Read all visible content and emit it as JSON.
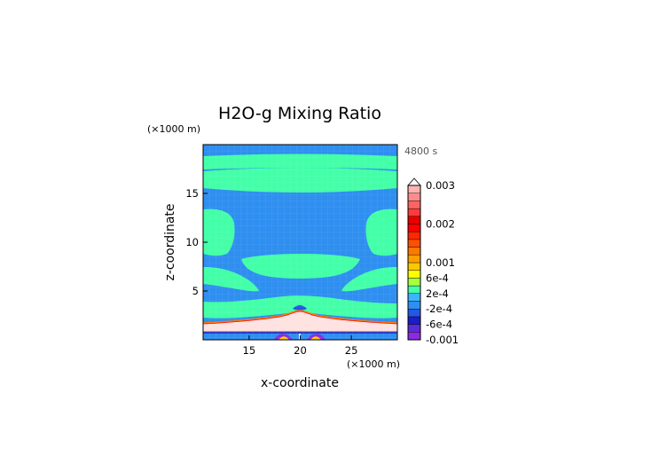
{
  "chart_data": {
    "type": "heatmap",
    "title": "H2O-g Mixing Ratio",
    "time_label": "4800 s",
    "xlabel": "x-coordinate",
    "ylabel": "z-coordinate",
    "x_units": "(×1000 m)",
    "y_units": "(×1000 m)",
    "xlim": [
      10.5,
      29.5
    ],
    "ylim": [
      0,
      20
    ],
    "x_ticks": [
      15,
      20,
      25
    ],
    "y_ticks": [
      5,
      10,
      15
    ],
    "colorbar": {
      "labels": [
        "0.003",
        "0.002",
        "0.001",
        "6e-4",
        "2e-4",
        "-2e-4",
        "-6e-4",
        "-0.001"
      ],
      "label_levels": [
        0.003,
        0.002,
        0.001,
        0.0006,
        0.0002,
        -0.0002,
        -0.0006,
        -0.001
      ],
      "levels": [
        -0.001,
        -0.0008,
        -0.0006,
        -0.0004,
        -0.0002,
        0,
        0.0002,
        0.0004,
        0.0006,
        0.0008,
        0.001,
        0.0012,
        0.0014,
        0.0016,
        0.0018,
        0.002,
        0.0022,
        0.0024,
        0.0026,
        0.0028,
        0.003
      ],
      "colors": [
        "#8a2be2",
        "#5a2bd6",
        "#1c1cc8",
        "#2358e6",
        "#2f8ff0",
        "#3cb4ff",
        "#43ffa8",
        "#a8ff3c",
        "#ffff00",
        "#ffc800",
        "#ffa000",
        "#ff7800",
        "#ff5000",
        "#ff2800",
        "#ff0000",
        "#e60000",
        "#ff3c3c",
        "#ff6464",
        "#ff8c8c",
        "#ffb4b4"
      ],
      "extend_max": true
    },
    "field_regions": [
      {
        "value": 0.0003,
        "kind": "band",
        "z": [
          18.2,
          19.5
        ]
      },
      {
        "value": 0.0003,
        "kind": "band",
        "z": [
          15.4,
          17.3
        ]
      },
      {
        "value": 0.0003,
        "kind": "patch",
        "x": [
          10.5,
          13.5
        ],
        "z": [
          9.6,
          14.8
        ]
      },
      {
        "value": 0.0003,
        "kind": "patch",
        "x": [
          26.5,
          29.5
        ],
        "z": [
          9.6,
          14.8
        ]
      },
      {
        "value": 0.0003,
        "kind": "patch",
        "x": [
          14.5,
          25.5
        ],
        "z": [
          7.3,
          9.3
        ]
      },
      {
        "value": 0.0003,
        "kind": "patch",
        "x": [
          10.5,
          14.5
        ],
        "z": [
          4.6,
          6.8
        ]
      },
      {
        "value": 0.0003,
        "kind": "patch",
        "x": [
          25.5,
          29.5
        ],
        "z": [
          4.6,
          6.8
        ]
      },
      {
        "value": 0.0003,
        "kind": "band",
        "z": [
          2.2,
          3.4
        ]
      },
      {
        "value": 0.003,
        "kind": "band",
        "z": [
          0.85,
          1.9
        ]
      },
      {
        "value": -0.001,
        "kind": "patch",
        "x": [
          17.3,
          19.0
        ],
        "z": [
          0,
          0.6
        ]
      },
      {
        "value": -0.001,
        "kind": "patch",
        "x": [
          21.0,
          22.7
        ],
        "z": [
          0,
          0.6
        ]
      }
    ]
  }
}
